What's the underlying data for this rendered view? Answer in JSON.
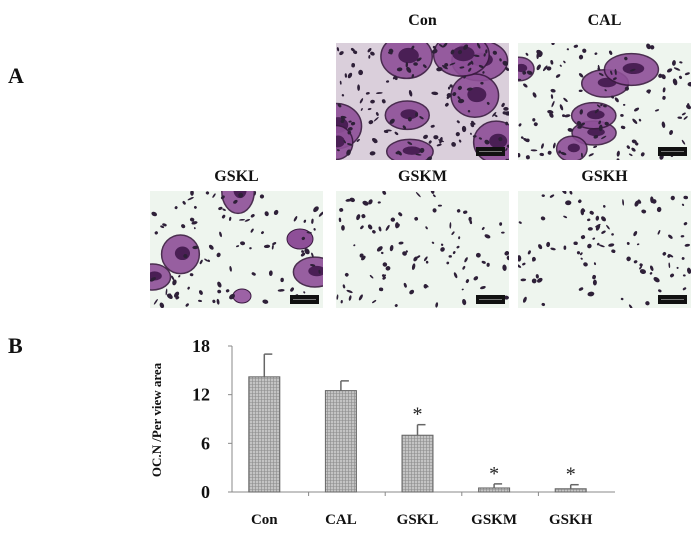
{
  "panels": {
    "a": "A",
    "b": "B"
  },
  "micrographs": [
    {
      "label": "Con",
      "density": "high"
    },
    {
      "label": "CAL",
      "density": "medium"
    },
    {
      "label": "GSKL",
      "density": "low"
    },
    {
      "label": "GSKM",
      "density": "minimal"
    },
    {
      "label": "GSKH",
      "density": "minimal"
    }
  ],
  "colors": {
    "stain": "#7a3a86",
    "background": "#eef5ee",
    "bar": "#b8b8b8"
  },
  "chart_data": {
    "type": "bar",
    "categories": [
      "Con",
      "CAL",
      "GSKL",
      "GSKM",
      "GSKH"
    ],
    "values": [
      14.2,
      12.5,
      7.0,
      0.5,
      0.4
    ],
    "error_upper": [
      17.0,
      13.7,
      8.3,
      1.0,
      0.9
    ],
    "significance": [
      "",
      "",
      "*",
      "*",
      "*"
    ],
    "ylabel": "OC.N /Per view area",
    "xlabel": "",
    "ylim": [
      0,
      18
    ],
    "yticks": [
      "0",
      "6",
      "12",
      "18"
    ],
    "grid": false,
    "legend": "none"
  }
}
